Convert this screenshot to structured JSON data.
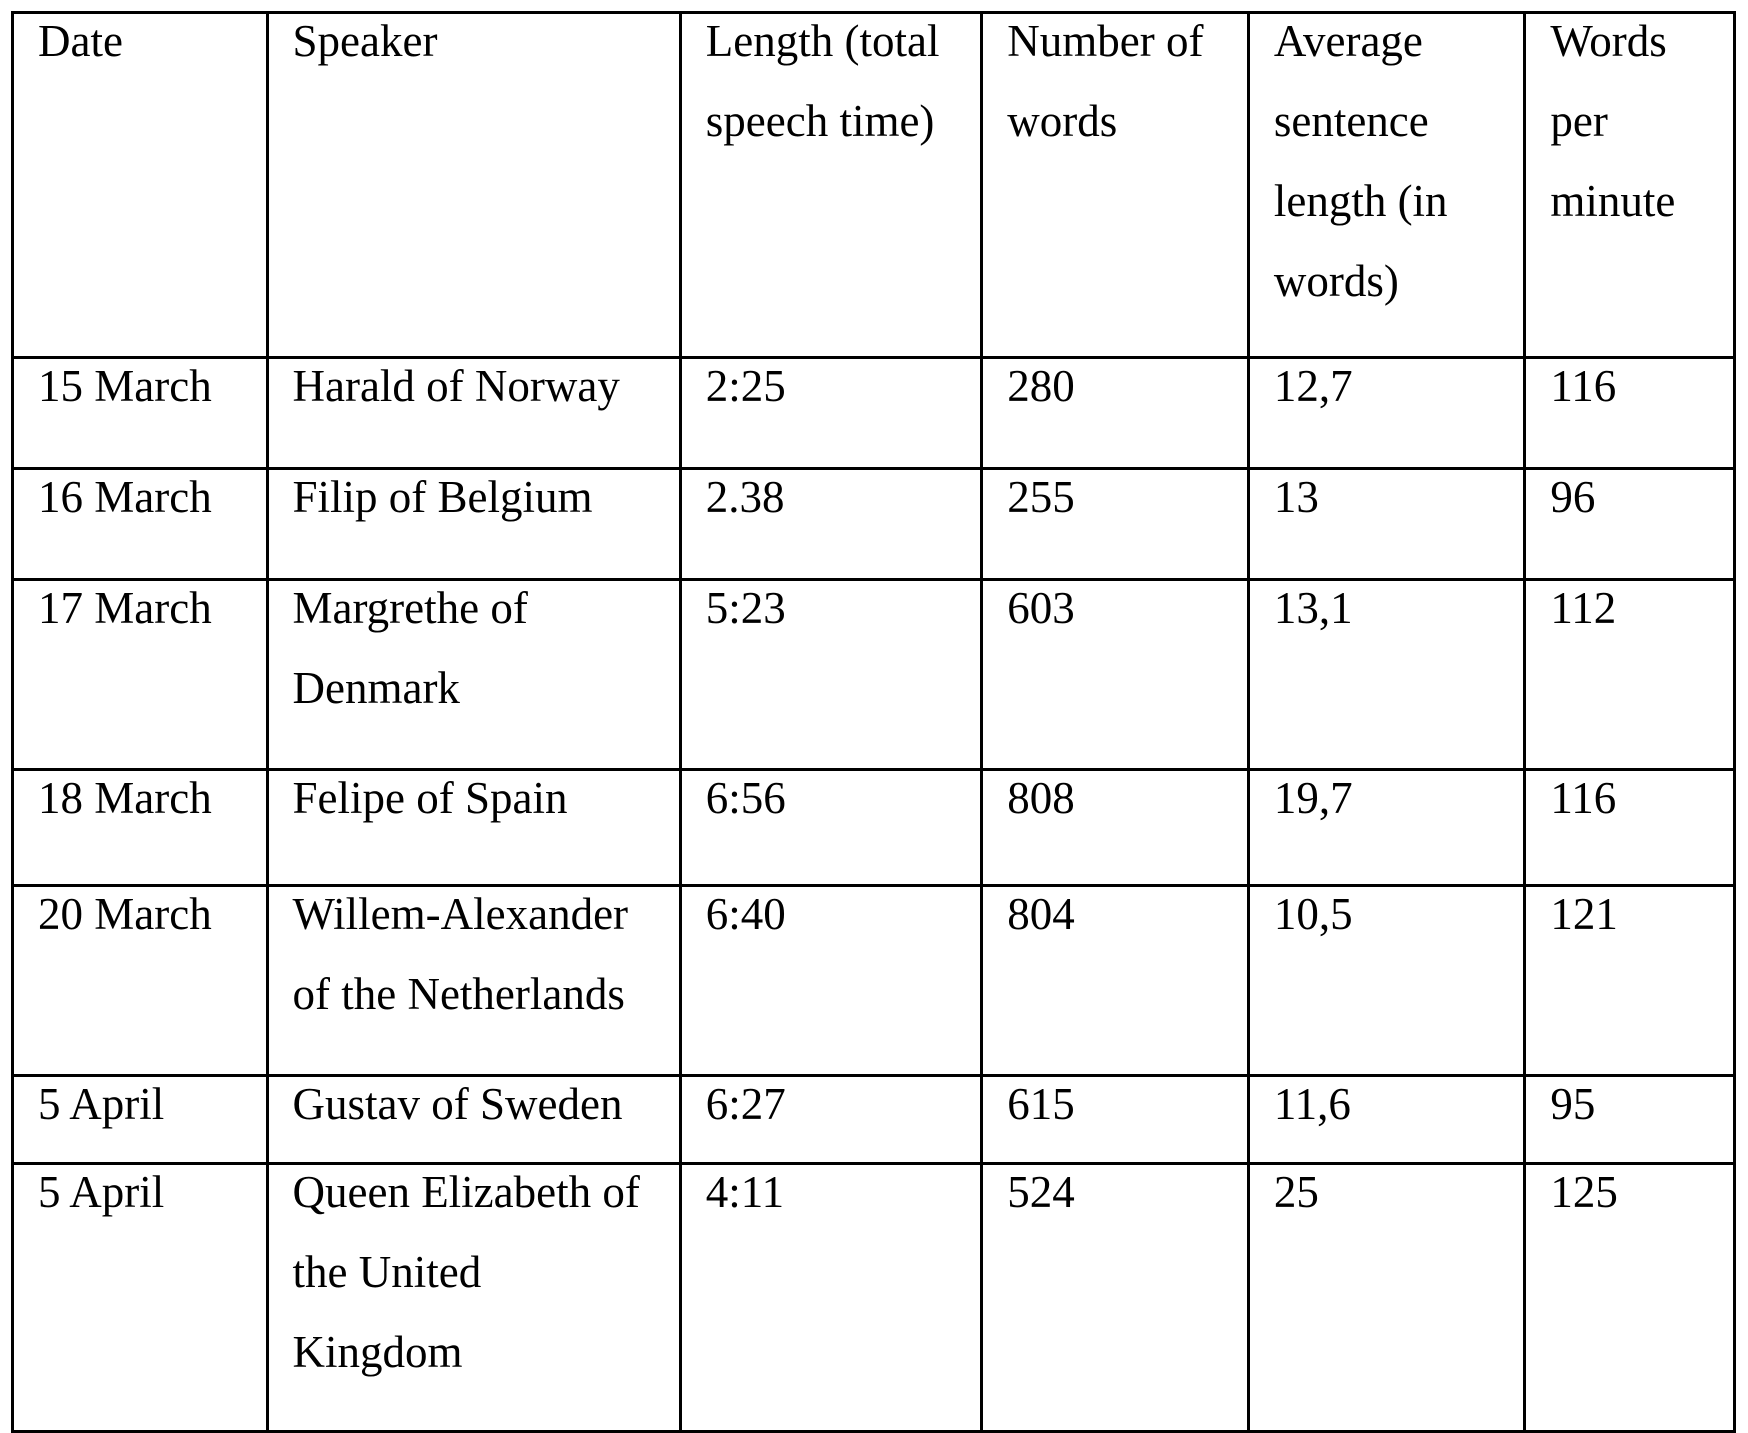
{
  "table": {
    "title_semantic": "royal-speech-statistics",
    "colors": {
      "border": "#000000",
      "text": "#000000",
      "background": "#ffffff"
    },
    "columns": [
      "Date",
      "Speaker",
      "Length (total\nspeech time)",
      "Number of\nwords",
      "Average\nsentence\nlength (in\nwords)",
      "Words\nper\nminute"
    ],
    "rows": [
      {
        "cells": [
          "15 March",
          "Harald of Norway",
          "2:25",
          "280",
          "12,7",
          "116"
        ]
      },
      {
        "cells": [
          "16 March",
          "Filip of Belgium",
          "2.38",
          "255",
          "13",
          "96"
        ]
      },
      {
        "cells": [
          "17 March",
          "Margrethe of\nDenmark",
          "5:23",
          "603",
          "13,1",
          "112"
        ]
      },
      {
        "cells": [
          "18 March",
          "Felipe of Spain",
          "6:56",
          "808",
          "19,7",
          "116"
        ]
      },
      {
        "cells": [
          "20 March",
          "Willem-Alexander\nof the Netherlands",
          "6:40",
          "804",
          "10,5",
          "121"
        ]
      },
      {
        "cells": [
          "5 April",
          "Gustav of Sweden",
          "6:27",
          "615",
          "11,6",
          "95"
        ]
      },
      {
        "cells": [
          "5 April",
          "Queen Elizabeth of\nthe United\nKingdom",
          "4:11",
          "524",
          "25",
          "125"
        ]
      }
    ]
  }
}
